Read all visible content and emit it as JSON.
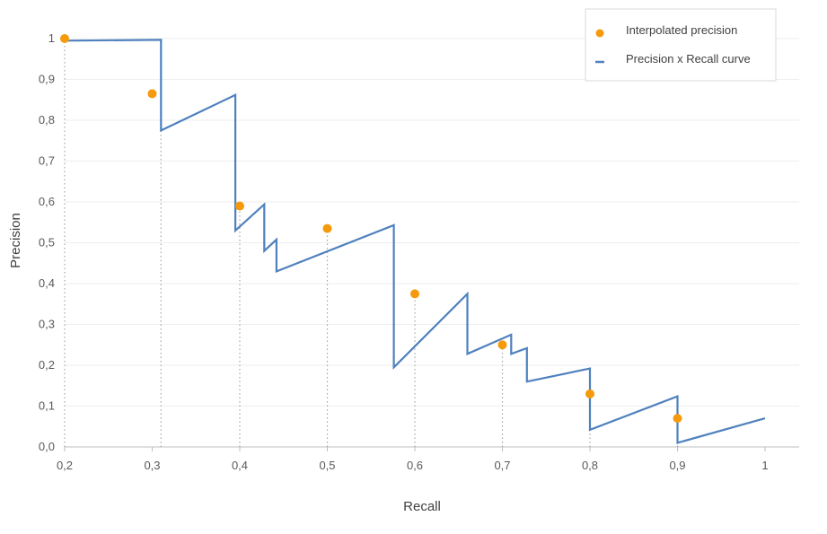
{
  "chart_data": {
    "type": "line",
    "xlabel": "Recall",
    "ylabel": "Precision",
    "xlim": [
      0.2,
      1.0
    ],
    "ylim": [
      0.0,
      1.0
    ],
    "x_ticks": [
      0.2,
      0.3,
      0.4,
      0.5,
      0.6,
      0.7,
      0.8,
      0.9,
      1.0
    ],
    "x_tick_labels": [
      "0,2",
      "0,3",
      "0,4",
      "0,5",
      "0,6",
      "0,7",
      "0,8",
      "0,9",
      "1"
    ],
    "y_ticks": [
      0.0,
      0.1,
      0.2,
      0.3,
      0.4,
      0.5,
      0.6,
      0.7,
      0.8,
      0.9,
      1.0
    ],
    "y_tick_labels": [
      "0,0",
      "0,1",
      "0,2",
      "0,3",
      "0,4",
      "0,5",
      "0,6",
      "0,7",
      "0,8",
      "0,9",
      "1"
    ],
    "grid": "horizontal",
    "legend_position": "top-right",
    "series": [
      {
        "name": "Interpolated precision",
        "kind": "scatter",
        "color": "#F59A0C",
        "points": [
          {
            "x": 0.2,
            "y": 1.0
          },
          {
            "x": 0.3,
            "y": 0.865
          },
          {
            "x": 0.4,
            "y": 0.59
          },
          {
            "x": 0.5,
            "y": 0.535
          },
          {
            "x": 0.6,
            "y": 0.375
          },
          {
            "x": 0.7,
            "y": 0.25
          },
          {
            "x": 0.8,
            "y": 0.13
          },
          {
            "x": 0.9,
            "y": 0.07
          }
        ],
        "guides": [
          {
            "x": 0.2,
            "y_from": 0.0,
            "y_to": 1.0
          },
          {
            "x": 0.31,
            "y_from": 0.0,
            "y_to": 0.78
          },
          {
            "x": 0.4,
            "y_from": 0.0,
            "y_to": 0.59
          },
          {
            "x": 0.5,
            "y_from": 0.0,
            "y_to": 0.535
          },
          {
            "x": 0.6,
            "y_from": 0.0,
            "y_to": 0.375
          },
          {
            "x": 0.7,
            "y_from": 0.0,
            "y_to": 0.25
          },
          {
            "x": 0.8,
            "y_from": 0.0,
            "y_to": 0.13
          },
          {
            "x": 0.9,
            "y_from": 0.0,
            "y_to": 0.07
          }
        ]
      },
      {
        "name": "Precision x Recall curve",
        "kind": "line",
        "color": "#4F81BD",
        "points": [
          {
            "x": 0.2,
            "y": 0.995
          },
          {
            "x": 0.31,
            "y": 0.997
          },
          {
            "x": 0.31,
            "y": 0.775
          },
          {
            "x": 0.395,
            "y": 0.862
          },
          {
            "x": 0.395,
            "y": 0.53
          },
          {
            "x": 0.428,
            "y": 0.594
          },
          {
            "x": 0.428,
            "y": 0.48
          },
          {
            "x": 0.442,
            "y": 0.508
          },
          {
            "x": 0.442,
            "y": 0.43
          },
          {
            "x": 0.576,
            "y": 0.543
          },
          {
            "x": 0.576,
            "y": 0.195
          },
          {
            "x": 0.66,
            "y": 0.375
          },
          {
            "x": 0.66,
            "y": 0.228
          },
          {
            "x": 0.71,
            "y": 0.275
          },
          {
            "x": 0.71,
            "y": 0.228
          },
          {
            "x": 0.728,
            "y": 0.242
          },
          {
            "x": 0.728,
            "y": 0.16
          },
          {
            "x": 0.8,
            "y": 0.192
          },
          {
            "x": 0.8,
            "y": 0.042
          },
          {
            "x": 0.9,
            "y": 0.124
          },
          {
            "x": 0.9,
            "y": 0.01
          },
          {
            "x": 1.0,
            "y": 0.07
          }
        ]
      }
    ]
  }
}
